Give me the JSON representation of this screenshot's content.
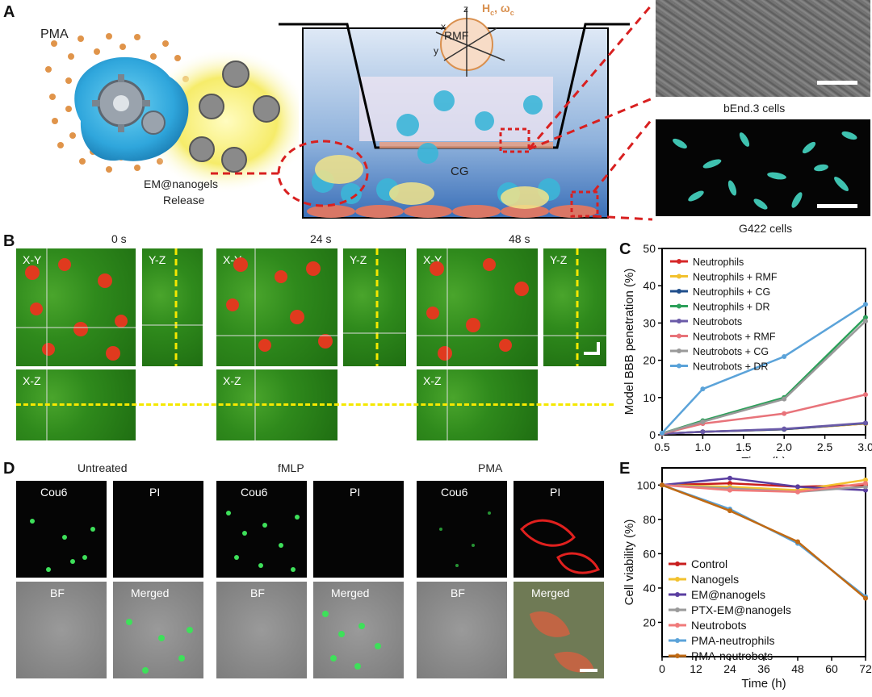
{
  "panels": {
    "A": "A",
    "B": "B",
    "C": "C",
    "D": "D",
    "E": "E"
  },
  "panelA": {
    "pma": "PMA",
    "release_line1": "EM@nanogels",
    "release_line2": "Release",
    "rmf": "RMF",
    "field": "H",
    "field_sub": "c",
    "omega": "ω",
    "omega_sub": "c",
    "axis_z": "z",
    "axis_x": "x",
    "axis_y": "y",
    "cg": "CG",
    "bend": "bEnd.3 cells",
    "g422": "G422 cells"
  },
  "panelB": {
    "times": [
      "0 s",
      "24 s",
      "48 s"
    ],
    "xy": "X-Y",
    "yz": "Y-Z",
    "xz": "X-Z"
  },
  "panelD": {
    "groups": [
      "Untreated",
      "fMLP",
      "PMA"
    ],
    "tags": [
      "Cou6",
      "PI",
      "BF",
      "Merged"
    ]
  },
  "chart_data": [
    {
      "type": "line",
      "title": "",
      "xlabel": "Time (h)",
      "ylabel": "Model BBB penetration (%)",
      "xlim": [
        0.5,
        3.0
      ],
      "ylim": [
        0,
        50
      ],
      "xticks": [
        "0.5",
        "1.0",
        "1.5",
        "2.0",
        "2.5",
        "3.0"
      ],
      "yticks": [
        "0",
        "10",
        "20",
        "30",
        "40",
        "50"
      ],
      "legend_position": "top-left",
      "x": [
        0.5,
        1.0,
        2.0,
        3.0
      ],
      "series": [
        {
          "name": "Neutrophils",
          "color": "#d62728",
          "values": [
            0.3,
            0.8,
            1.5,
            3.0
          ]
        },
        {
          "name": "Neutrophils + RMF",
          "color": "#f2c12e",
          "values": [
            0.3,
            0.8,
            1.5,
            3.0
          ]
        },
        {
          "name": "Neutrophils + CG",
          "color": "#1f4e8c",
          "values": [
            0.3,
            0.8,
            1.5,
            3.1
          ]
        },
        {
          "name": "Neutrophils + DR",
          "color": "#2ca05a",
          "values": [
            0.4,
            3.8,
            10.0,
            31.5
          ]
        },
        {
          "name": "Neutrobots",
          "color": "#6a5aa8",
          "values": [
            0.3,
            0.8,
            1.6,
            3.2
          ]
        },
        {
          "name": "Neutrobots + RMF",
          "color": "#e8737a",
          "values": [
            0.3,
            3.0,
            5.7,
            10.8
          ]
        },
        {
          "name": "Neutrobots + CG",
          "color": "#999999",
          "values": [
            0.4,
            3.5,
            9.6,
            30.5
          ]
        },
        {
          "name": "Neutrobots + DR",
          "color": "#5ba3d9",
          "values": [
            0.5,
            12.3,
            21.0,
            35.0
          ]
        }
      ]
    },
    {
      "type": "line",
      "title": "",
      "xlabel": "Time (h)",
      "ylabel": "Cell viability (%)",
      "xlim": [
        0,
        72
      ],
      "ylim": [
        0,
        110
      ],
      "xticks": [
        "0",
        "12",
        "24",
        "36",
        "48",
        "60",
        "72"
      ],
      "yticks": [
        "20",
        "40",
        "60",
        "80",
        "100"
      ],
      "legend_position": "bottom-left",
      "x": [
        0,
        24,
        48,
        72
      ],
      "series": [
        {
          "name": "Control",
          "color": "#c81e1e",
          "values": [
            100,
            101,
            99,
            100
          ]
        },
        {
          "name": "Nanogels",
          "color": "#f2c12e",
          "values": [
            100,
            99,
            97,
            103
          ]
        },
        {
          "name": "EM@nanogels",
          "color": "#5a3ea0",
          "values": [
            100,
            104,
            99,
            97
          ]
        },
        {
          "name": "PTX-EM@nanogels",
          "color": "#9a9a9a",
          "values": [
            100,
            98,
            96,
            99
          ]
        },
        {
          "name": "Neutrobots",
          "color": "#f07a7a",
          "values": [
            100,
            97,
            96,
            101
          ]
        },
        {
          "name": "PMA-neutrophils",
          "color": "#5ba3d9",
          "values": [
            100,
            86,
            66,
            35
          ]
        },
        {
          "name": "PMA-neutrobots",
          "color": "#c06a14",
          "values": [
            100,
            85,
            67,
            34
          ]
        }
      ]
    }
  ]
}
